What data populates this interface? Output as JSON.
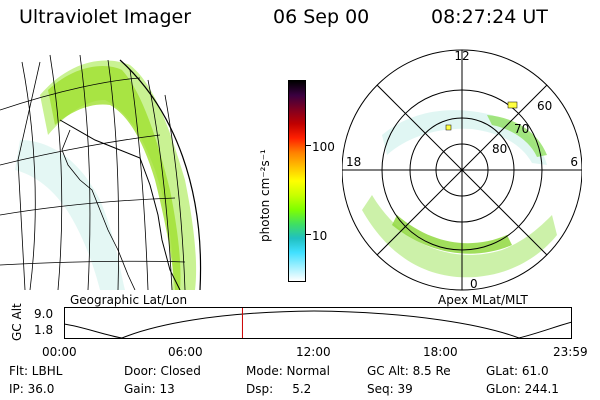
{
  "header": {
    "instrument": "Ultraviolet Imager",
    "date": "06 Sep 00",
    "time": "08:27:24 UT"
  },
  "panels": {
    "geo_label": "Geographic Lat/Lon",
    "apex_label": "Apex  MLat/MLT"
  },
  "colorbar": {
    "unit_label": "photon cm⁻²s⁻¹",
    "ticks": [
      "100",
      "10"
    ],
    "colors": [
      "#000000",
      "#3a0040",
      "#800020",
      "#c00000",
      "#ff2000",
      "#ff8000",
      "#ffc000",
      "#ffff00",
      "#c8ff00",
      "#80ff00",
      "#40e060",
      "#20c0c0",
      "#40e0ff",
      "#a0f0ff",
      "#ffffff"
    ]
  },
  "polar": {
    "mlt_labels": {
      "top": "12",
      "right": "6",
      "bottom": "0",
      "left": "18"
    },
    "lat_labels": [
      "60",
      "70",
      "80"
    ]
  },
  "timeline": {
    "axis_title": "GC Alt",
    "y_ticks": [
      "9.0",
      "1.8"
    ],
    "x_ticks": [
      "00:00",
      "06:00",
      "12:00",
      "18:00",
      "23:59"
    ],
    "current_fraction": 0.351,
    "marker_color": "#cc0000"
  },
  "info": {
    "flt": "Flt: LBHL",
    "ip": "IP: 36.0",
    "door": "Door: Closed",
    "gain": "Gain: 13",
    "mode": "Mode: Normal",
    "dsp": "Dsp:     5.2",
    "gcalt": "GC Alt: 8.5 Re",
    "seq": "Seq: 39",
    "glat": "GLat: 61.0",
    "glon": "GLon: 244.1"
  }
}
